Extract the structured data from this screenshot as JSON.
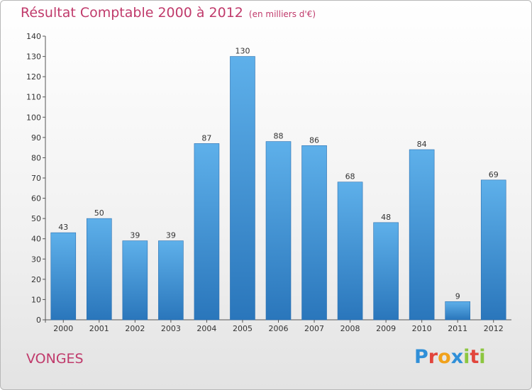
{
  "chart_data": {
    "type": "bar",
    "title": "Résultat Comptable 2000 à 2012",
    "subtitle": "(en milliers d'€)",
    "categories": [
      "2000",
      "2001",
      "2002",
      "2003",
      "2004",
      "2005",
      "2006",
      "2007",
      "2008",
      "2009",
      "2010",
      "2011",
      "2012"
    ],
    "values": [
      43,
      50,
      39,
      39,
      87,
      130,
      88,
      86,
      68,
      48,
      84,
      9,
      69
    ],
    "ylim": [
      0,
      140
    ],
    "yticks": [
      0,
      10,
      20,
      30,
      40,
      50,
      60,
      70,
      80,
      90,
      100,
      110,
      120,
      130,
      140
    ],
    "xlabel": "",
    "ylabel": "",
    "grid": false,
    "bar_color": "#3d8fd2"
  },
  "location": "VONGES",
  "brand": {
    "letters": [
      "P",
      "r",
      "o",
      "x",
      "i",
      "t",
      "i"
    ],
    "colors": [
      "#2f8fd8",
      "#e2453c",
      "#f1a21c",
      "#2f8fd8",
      "#8cc63f",
      "#e2453c",
      "#8cc63f"
    ]
  }
}
